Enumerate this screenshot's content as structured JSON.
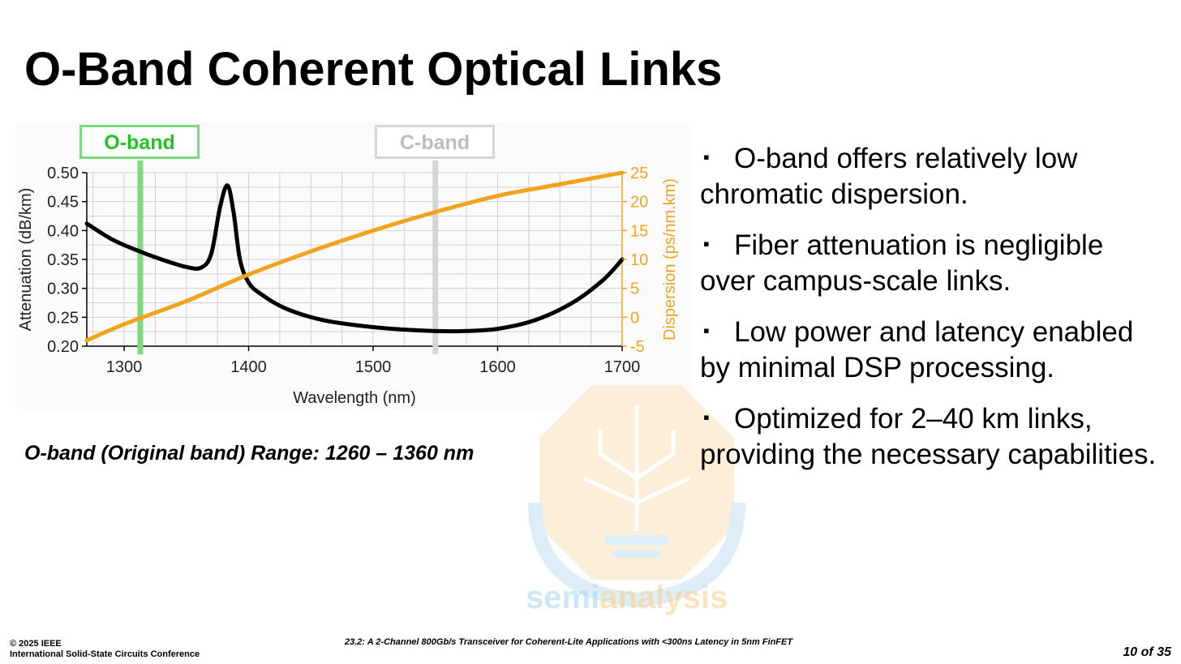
{
  "slide": {
    "title": "O-Band Coherent Optical Links",
    "caption": "O-band (Original band) Range: 1260 – 1360 nm",
    "bullets": [
      "O-band offers relatively low chromatic dispersion.",
      "Fiber attenuation is negligible over campus-scale links.",
      "Low power and latency enabled by minimal DSP processing.",
      "Optimized for 2–40 km links, providing the necessary capabilities."
    ],
    "bullet_marker": "▪"
  },
  "watermark": {
    "part1": "semi",
    "part2": "analysis",
    "icon": "lightbulb-circuit-icon"
  },
  "footer": {
    "copyright": "© 2025 IEEE",
    "conference": "International Solid-State Circuits Conference",
    "paper": "23.2: A 2-Channel 800Gb/s Transceiver for Coherent-Lite Applications with <300ns Latency in 5nm FinFET",
    "page": "10 of 35"
  },
  "colors": {
    "attenuation": "#000000",
    "dispersion": "#f0a41e",
    "o_band": "#7bdc7b",
    "c_band": "#d6d6d6",
    "grid": "#d0d0d0"
  },
  "chart_data": {
    "type": "line",
    "xlabel": "Wavelength (nm)",
    "ylabel_left": "Attenuation (dB/km)",
    "ylabel_right": "Dispersion (ps/nm.km)",
    "xlim": [
      1270,
      1700
    ],
    "ylim_left": [
      0.2,
      0.5
    ],
    "ylim_right": [
      -5,
      25
    ],
    "x_ticks": [
      1300,
      1400,
      1500,
      1600,
      1700
    ],
    "y_ticks_left": [
      "0.20",
      "0.25",
      "0.30",
      "0.35",
      "0.40",
      "0.45",
      "0.50"
    ],
    "y_ticks_right": [
      "-5",
      "0",
      "5",
      "10",
      "15",
      "20",
      "25"
    ],
    "grid": true,
    "bands": [
      {
        "label": "O-band",
        "x": 1313
      },
      {
        "label": "C-band",
        "x": 1550
      }
    ],
    "series": [
      {
        "axis": "left",
        "x": [
          1270,
          1290,
          1310,
          1330,
          1350,
          1362,
          1370,
          1377,
          1383,
          1388,
          1393,
          1400,
          1410,
          1430,
          1460,
          1500,
          1540,
          1570,
          1600,
          1630,
          1660,
          1685,
          1700
        ],
        "y": [
          0.412,
          0.385,
          0.366,
          0.35,
          0.337,
          0.336,
          0.36,
          0.44,
          0.478,
          0.43,
          0.35,
          0.31,
          0.29,
          0.265,
          0.245,
          0.233,
          0.227,
          0.226,
          0.23,
          0.245,
          0.275,
          0.315,
          0.35
        ]
      },
      {
        "axis": "right",
        "x": [
          1270,
          1300,
          1350,
          1400,
          1450,
          1500,
          1550,
          1600,
          1650,
          1700
        ],
        "y": [
          -4,
          -1.2,
          2.8,
          7.4,
          11.4,
          15,
          18.2,
          21,
          23,
          25
        ]
      }
    ]
  }
}
